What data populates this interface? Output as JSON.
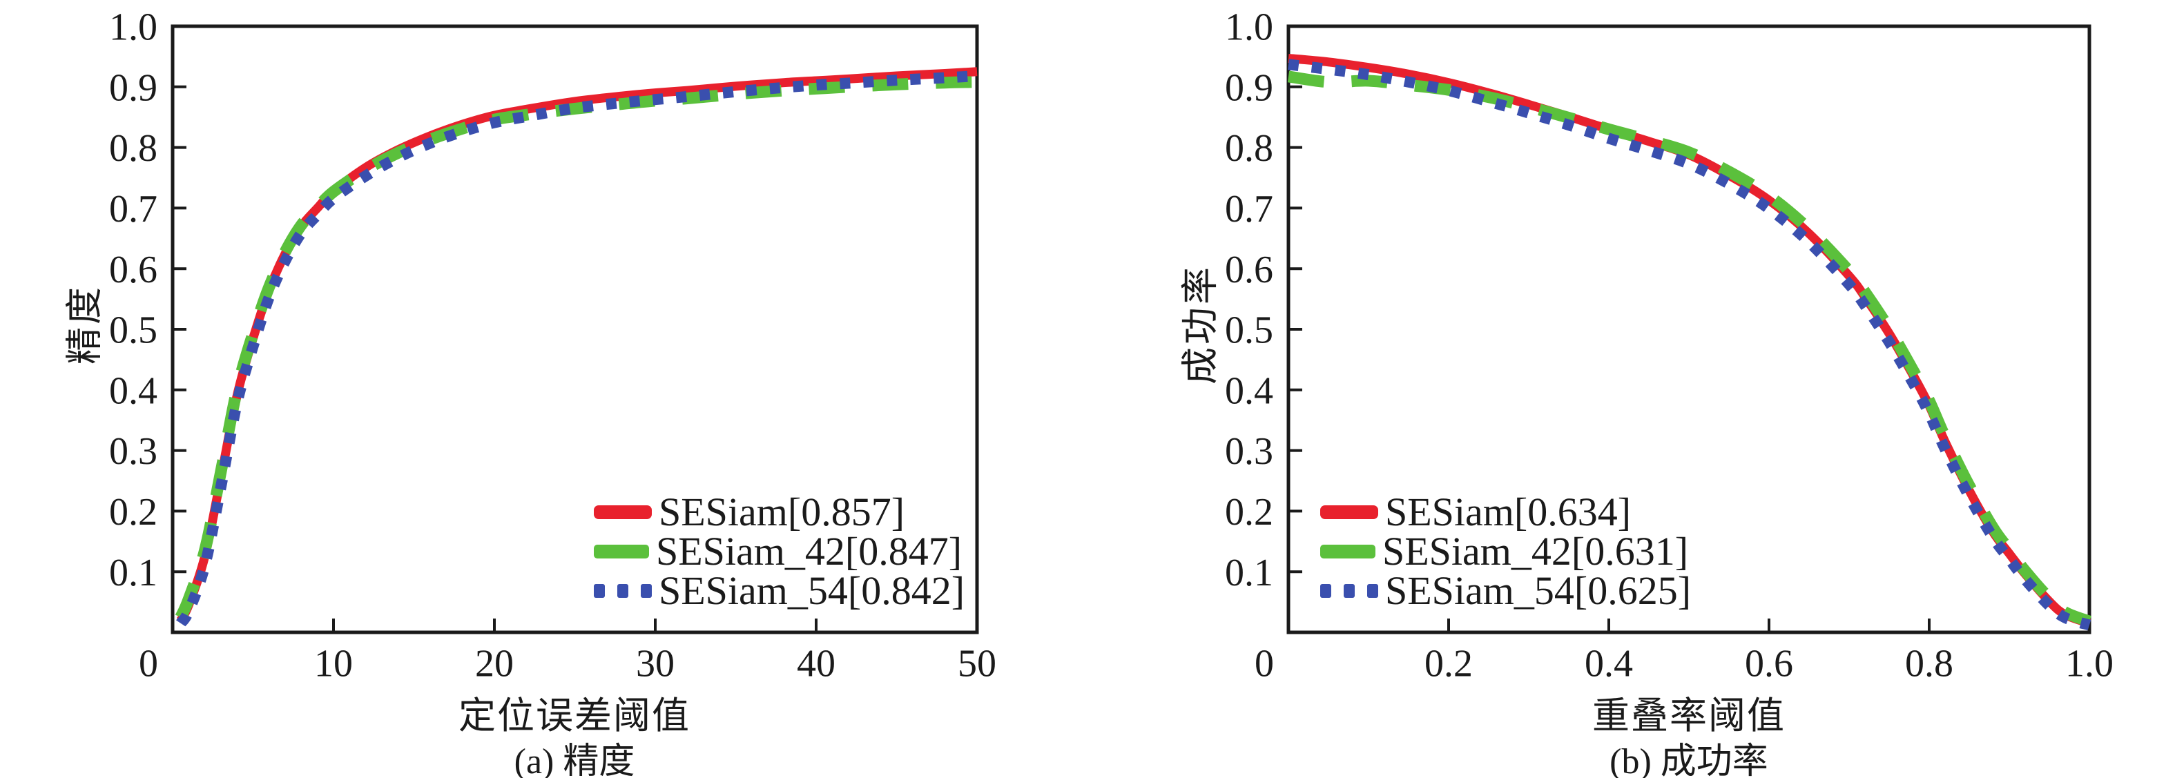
{
  "figure": {
    "background": "#ffffff",
    "text_color": "#1a1a1a",
    "frame_color": "#1a1a1a"
  },
  "chart_data": [
    {
      "type": "line",
      "title": "",
      "xlabel": "定位误差阈值",
      "ylabel": "精度",
      "caption": "(a) 精度",
      "xlim": [
        0,
        50
      ],
      "ylim": [
        0,
        1
      ],
      "grid": false,
      "legend_position": "center-right",
      "x_tick_labels": [
        {
          "v": 0,
          "label": "0"
        },
        {
          "v": 10,
          "label": "10"
        },
        {
          "v": 20,
          "label": "20"
        },
        {
          "v": 30,
          "label": "30"
        },
        {
          "v": 40,
          "label": "40"
        },
        {
          "v": 50,
          "label": "50"
        }
      ],
      "y_tick_labels": [
        {
          "v": 0.1,
          "label": "0.1"
        },
        {
          "v": 0.2,
          "label": "0.2"
        },
        {
          "v": 0.3,
          "label": "0.3"
        },
        {
          "v": 0.4,
          "label": "0.4"
        },
        {
          "v": 0.5,
          "label": "0.5"
        },
        {
          "v": 0.6,
          "label": "0.6"
        },
        {
          "v": 0.7,
          "label": "0.7"
        },
        {
          "v": 0.8,
          "label": "0.8"
        },
        {
          "v": 0.9,
          "label": "0.9"
        },
        {
          "v": 1.0,
          "label": "1.0"
        }
      ],
      "x": [
        0.5,
        1,
        2,
        3,
        4,
        5,
        6,
        7,
        8,
        9,
        10,
        12,
        14,
        16,
        18,
        20,
        22,
        25,
        28,
        30,
        32,
        35,
        38,
        40,
        42,
        45,
        48,
        50
      ],
      "series": [
        {
          "name": "SESiam",
          "legend_label": "SESiam[0.857]",
          "score": 0.857,
          "color": "#e8212d",
          "line_style": "solid",
          "values": [
            0.02,
            0.045,
            0.125,
            0.255,
            0.39,
            0.485,
            0.565,
            0.625,
            0.67,
            0.7,
            0.728,
            0.767,
            0.796,
            0.819,
            0.838,
            0.853,
            0.863,
            0.876,
            0.885,
            0.89,
            0.894,
            0.901,
            0.907,
            0.91,
            0.913,
            0.918,
            0.922,
            0.925
          ]
        },
        {
          "name": "SESiam_42",
          "legend_label": "SESiam_42[0.847]",
          "score": 0.847,
          "color": "#5bc03c",
          "line_style": "dashed",
          "values": [
            0.025,
            0.055,
            0.135,
            0.265,
            0.4,
            0.493,
            0.57,
            0.628,
            0.672,
            0.701,
            0.727,
            0.763,
            0.791,
            0.813,
            0.831,
            0.846,
            0.854,
            0.864,
            0.872,
            0.877,
            0.881,
            0.888,
            0.894,
            0.897,
            0.9,
            0.904,
            0.907,
            0.908
          ]
        },
        {
          "name": "SESiam_54",
          "legend_label": "SESiam_54[0.842]",
          "score": 0.842,
          "color": "#3a4fae",
          "line_style": "dotted",
          "values": [
            0.015,
            0.035,
            0.11,
            0.24,
            0.378,
            0.472,
            0.553,
            0.613,
            0.659,
            0.689,
            0.716,
            0.753,
            0.783,
            0.807,
            0.826,
            0.841,
            0.851,
            0.865,
            0.874,
            0.879,
            0.884,
            0.892,
            0.899,
            0.903,
            0.906,
            0.911,
            0.915,
            0.918
          ]
        }
      ]
    },
    {
      "type": "line",
      "title": "",
      "xlabel": "重叠率阈值",
      "ylabel": "成功率",
      "caption": "(b) 成功率",
      "xlim": [
        0,
        1
      ],
      "ylim": [
        0,
        1
      ],
      "grid": false,
      "legend_position": "lower-left",
      "x_tick_labels": [
        {
          "v": 0,
          "label": "0"
        },
        {
          "v": 0.2,
          "label": "0.2"
        },
        {
          "v": 0.4,
          "label": "0.4"
        },
        {
          "v": 0.6,
          "label": "0.6"
        },
        {
          "v": 0.8,
          "label": "0.8"
        },
        {
          "v": 1.0,
          "label": "1.0"
        }
      ],
      "y_tick_labels": [
        {
          "v": 0.1,
          "label": "0.1"
        },
        {
          "v": 0.2,
          "label": "0.2"
        },
        {
          "v": 0.3,
          "label": "0.3"
        },
        {
          "v": 0.4,
          "label": "0.4"
        },
        {
          "v": 0.5,
          "label": "0.5"
        },
        {
          "v": 0.6,
          "label": "0.6"
        },
        {
          "v": 0.7,
          "label": "0.7"
        },
        {
          "v": 0.8,
          "label": "0.8"
        },
        {
          "v": 0.9,
          "label": "0.9"
        },
        {
          "v": 1.0,
          "label": "1.0"
        }
      ],
      "x": [
        0,
        0.05,
        0.1,
        0.15,
        0.2,
        0.25,
        0.3,
        0.35,
        0.4,
        0.45,
        0.5,
        0.55,
        0.6,
        0.65,
        0.7,
        0.72,
        0.75,
        0.78,
        0.8,
        0.82,
        0.85,
        0.88,
        0.9,
        0.92,
        0.95,
        0.97,
        1.0
      ],
      "series": [
        {
          "name": "SESiam",
          "legend_label": "SESiam[0.634]",
          "score": 0.634,
          "color": "#e8212d",
          "line_style": "solid",
          "values": [
            0.947,
            0.941,
            0.932,
            0.921,
            0.907,
            0.89,
            0.871,
            0.851,
            0.83,
            0.81,
            0.788,
            0.754,
            0.713,
            0.658,
            0.588,
            0.553,
            0.493,
            0.424,
            0.374,
            0.314,
            0.234,
            0.165,
            0.13,
            0.096,
            0.051,
            0.029,
            0.015
          ]
        },
        {
          "name": "SESiam_42",
          "legend_label": "SESiam_42[0.631]",
          "score": 0.631,
          "color": "#5bc03c",
          "line_style": "dashed",
          "values": [
            0.917,
            0.908,
            0.91,
            0.903,
            0.895,
            0.883,
            0.867,
            0.849,
            0.83,
            0.812,
            0.792,
            0.76,
            0.72,
            0.665,
            0.596,
            0.561,
            0.501,
            0.432,
            0.382,
            0.322,
            0.242,
            0.172,
            0.136,
            0.101,
            0.056,
            0.033,
            0.018
          ]
        },
        {
          "name": "SESiam_54",
          "legend_label": "SESiam_54[0.625]",
          "score": 0.625,
          "color": "#3a4fae",
          "line_style": "dotted",
          "values": [
            0.937,
            0.929,
            0.92,
            0.908,
            0.894,
            0.876,
            0.857,
            0.837,
            0.815,
            0.795,
            0.773,
            0.74,
            0.699,
            0.644,
            0.574,
            0.539,
            0.479,
            0.411,
            0.361,
            0.302,
            0.224,
            0.156,
            0.121,
            0.087,
            0.044,
            0.024,
            0.012
          ]
        }
      ]
    }
  ]
}
